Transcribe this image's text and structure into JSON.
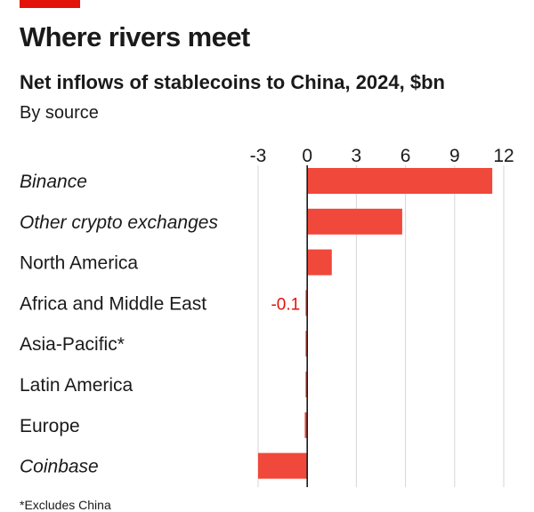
{
  "header": {
    "title": "Where rivers meet",
    "subtitle": "Net inflows of stablecoins to China, 2024, $bn",
    "subsubtitle": "By source"
  },
  "colors": {
    "accent": "#e3120b",
    "bar": "#f0483a",
    "grid": "#d6d6d6",
    "axis": "#1a1a1a",
    "text": "#1a1a1a"
  },
  "chart_data": {
    "type": "bar",
    "orientation": "horizontal",
    "title": "Net inflows of stablecoins to China, 2024, $bn",
    "subtitle": "By source",
    "xlim": [
      -3,
      12
    ],
    "xticks": [
      -3,
      0,
      3,
      6,
      9,
      12
    ],
    "grid": true,
    "categories": [
      "Binance",
      "Other crypto exchanges",
      "North America",
      "Africa and Middle East",
      "Asia-Pacific*",
      "Latin America",
      "Europe",
      "Coinbase"
    ],
    "italic": [
      true,
      true,
      false,
      false,
      false,
      false,
      false,
      true
    ],
    "values": [
      11.3,
      5.8,
      1.5,
      -0.1,
      -0.1,
      -0.1,
      -0.15,
      -3.0
    ],
    "annotations": [
      {
        "category": "Africa and Middle East",
        "text": "-0.1"
      }
    ]
  },
  "footnote": "*Excludes China"
}
